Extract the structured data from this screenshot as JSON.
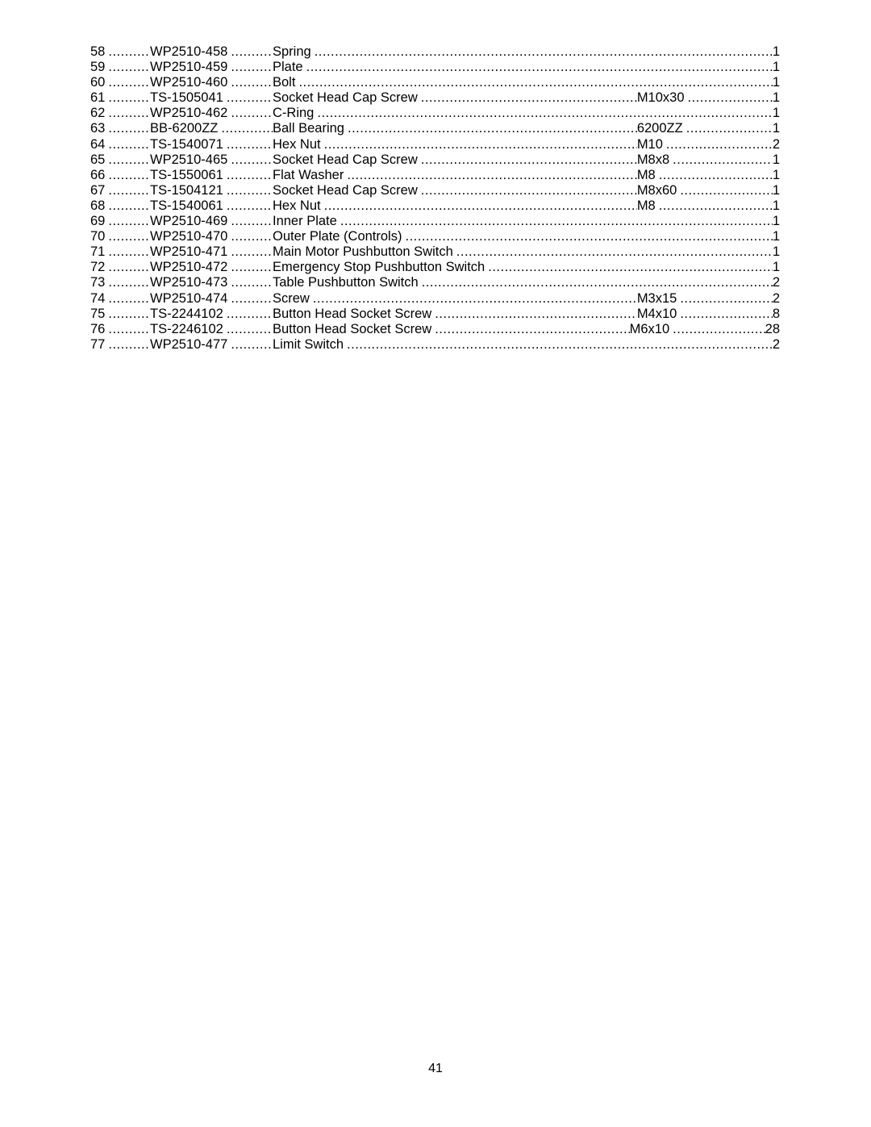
{
  "page_number": "41",
  "font": {
    "family": "Arial",
    "size_pt": 12,
    "color": "#000000"
  },
  "columns": [
    "index",
    "part_no",
    "description",
    "size",
    "qty"
  ],
  "rows": [
    {
      "index": "58",
      "part_no": "WP2510-458",
      "description": "Spring",
      "size": "",
      "qty": "1"
    },
    {
      "index": "59",
      "part_no": "WP2510-459",
      "description": "Plate",
      "size": "",
      "qty": "1"
    },
    {
      "index": "60",
      "part_no": "WP2510-460",
      "description": "Bolt",
      "size": "",
      "qty": "1"
    },
    {
      "index": "61",
      "part_no": "TS-1505041",
      "description": "Socket Head Cap Screw",
      "size": "M10x30",
      "qty": "1"
    },
    {
      "index": "62",
      "part_no": "WP2510-462",
      "description": "C-Ring",
      "size": "",
      "qty": "1"
    },
    {
      "index": "63",
      "part_no": "BB-6200ZZ",
      "description": "Ball Bearing",
      "size": "6200ZZ",
      "qty": "1"
    },
    {
      "index": "64",
      "part_no": "TS-1540071",
      "description": "Hex Nut",
      "size": "M10",
      "qty": "2"
    },
    {
      "index": "65",
      "part_no": "WP2510-465",
      "description": "Socket Head Cap Screw",
      "size": "M8x8",
      "qty": "1"
    },
    {
      "index": "66",
      "part_no": "TS-1550061",
      "description": "Flat Washer",
      "size": "M8",
      "qty": "1"
    },
    {
      "index": "67",
      "part_no": "TS-1504121",
      "description": "Socket Head Cap Screw",
      "size": "M8x60",
      "qty": "1"
    },
    {
      "index": "68",
      "part_no": "TS-1540061",
      "description": "Hex Nut",
      "size": "M8",
      "qty": "1"
    },
    {
      "index": "69",
      "part_no": "WP2510-469",
      "description": "Inner Plate",
      "size": "",
      "qty": "1"
    },
    {
      "index": "70",
      "part_no": "WP2510-470",
      "description": "Outer Plate (Controls)",
      "size": "",
      "qty": "1"
    },
    {
      "index": "71",
      "part_no": "WP2510-471",
      "description": "Main Motor Pushbutton Switch",
      "size": "",
      "qty": "1"
    },
    {
      "index": "72",
      "part_no": "WP2510-472",
      "description": "Emergency Stop Pushbutton Switch",
      "size": "",
      "qty": "1"
    },
    {
      "index": "73",
      "part_no": "WP2510-473",
      "description": "Table Pushbutton Switch",
      "size": "",
      "qty": "2"
    },
    {
      "index": "74",
      "part_no": "WP2510-474",
      "description": "Screw",
      "size": "M3x15",
      "qty": "2"
    },
    {
      "index": "75",
      "part_no": "TS-2244102",
      "description": "Button Head Socket Screw",
      "size": "M4x10",
      "qty": "8"
    },
    {
      "index": "76",
      "part_no": "TS-2246102",
      "description": "Button Head Socket Screw",
      "size": "M6x10",
      "qty": "28"
    },
    {
      "index": "77",
      "part_no": "WP2510-477",
      "description": "Limit Switch",
      "size": "",
      "qty": "2"
    }
  ]
}
